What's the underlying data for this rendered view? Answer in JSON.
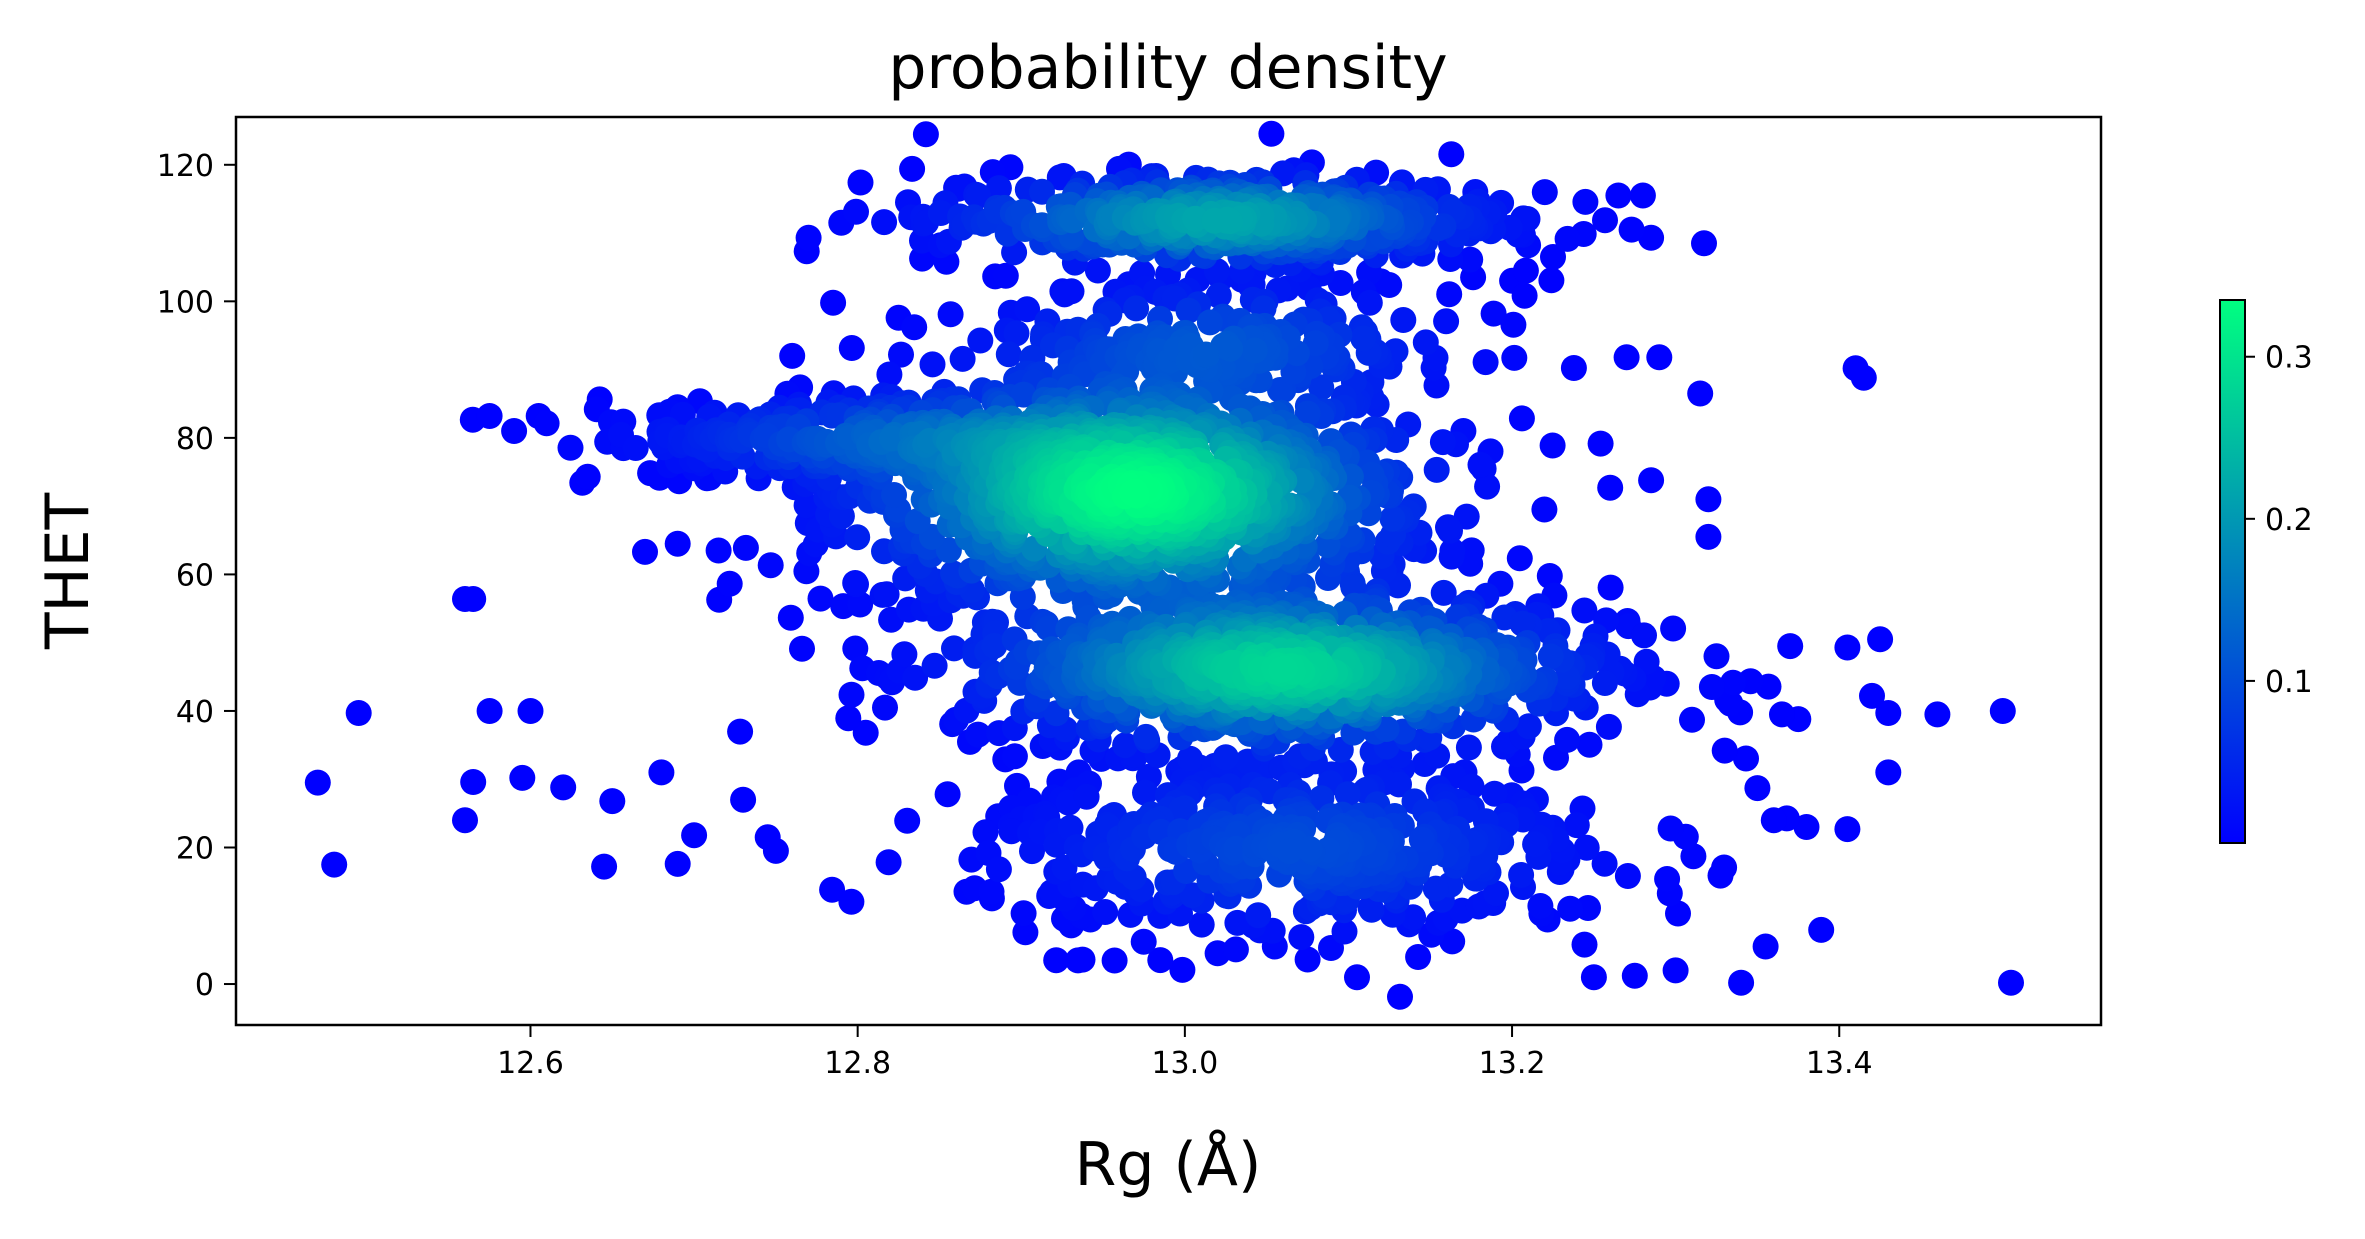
{
  "chart_data": {
    "type": "scatter",
    "title": "probability density",
    "xlabel": "Rg (Å)",
    "ylabel": "THET",
    "xlim": [
      12.42,
      13.56
    ],
    "ylim": [
      -6,
      127
    ],
    "x_ticks": [
      "12.6",
      "12.8",
      "13.0",
      "13.2",
      "13.4"
    ],
    "x_tick_values": [
      12.6,
      12.8,
      13.0,
      13.2,
      13.4
    ],
    "y_ticks": [
      "0",
      "20",
      "40",
      "60",
      "80",
      "100",
      "120"
    ],
    "y_tick_values": [
      0,
      20,
      40,
      60,
      80,
      100,
      120
    ],
    "grid": false,
    "colormap": "winter",
    "colormap_colors": [
      "#0000ff",
      "#00ff80"
    ],
    "colorbar": {
      "range": [
        0.0,
        0.335
      ],
      "ticks": [
        "0.1",
        "0.2",
        "0.3"
      ],
      "tick_values": [
        0.1,
        0.2,
        0.3
      ],
      "placement": "right"
    },
    "clusters": [
      {
        "x": 12.97,
        "y": 72,
        "sx": 0.09,
        "sy": 9,
        "n": 1100,
        "peak": 0.335
      },
      {
        "x": 13.06,
        "y": 46,
        "sx": 0.1,
        "sy": 6,
        "n": 800,
        "peak": 0.28
      },
      {
        "x": 13.02,
        "y": 112,
        "sx": 0.09,
        "sy": 3.5,
        "n": 450,
        "peak": 0.22
      },
      {
        "x": 12.8,
        "y": 80,
        "sx": 0.08,
        "sy": 3,
        "n": 250,
        "peak": 0.09
      },
      {
        "x": 13.07,
        "y": 20,
        "sx": 0.1,
        "sy": 7,
        "n": 450,
        "peak": 0.1
      },
      {
        "x": 13.02,
        "y": 94,
        "sx": 0.08,
        "sy": 5,
        "n": 200,
        "peak": 0.1
      }
    ],
    "outliers": [
      {
        "x": 12.47,
        "y": 29.5
      },
      {
        "x": 12.48,
        "y": 17.5
      },
      {
        "x": 12.495,
        "y": 39.7
      },
      {
        "x": 12.56,
        "y": 56.4
      },
      {
        "x": 12.565,
        "y": 56.4
      },
      {
        "x": 12.56,
        "y": 24
      },
      {
        "x": 12.565,
        "y": 29.6
      },
      {
        "x": 12.575,
        "y": 40
      },
      {
        "x": 12.595,
        "y": 30.2
      },
      {
        "x": 12.6,
        "y": 40
      },
      {
        "x": 12.62,
        "y": 28.8
      },
      {
        "x": 12.645,
        "y": 17.2
      },
      {
        "x": 12.65,
        "y": 26.8
      },
      {
        "x": 12.68,
        "y": 31
      },
      {
        "x": 12.69,
        "y": 17.6
      },
      {
        "x": 12.7,
        "y": 21.8
      },
      {
        "x": 12.73,
        "y": 27
      },
      {
        "x": 12.745,
        "y": 21.5
      },
      {
        "x": 12.75,
        "y": 19.5
      },
      {
        "x": 12.575,
        "y": 83.2
      },
      {
        "x": 12.59,
        "y": 81
      },
      {
        "x": 12.605,
        "y": 83.2
      },
      {
        "x": 12.635,
        "y": 74.3
      },
      {
        "x": 12.67,
        "y": 63.3
      },
      {
        "x": 12.69,
        "y": 64.5
      },
      {
        "x": 12.715,
        "y": 63.5
      },
      {
        "x": 12.76,
        "y": 92
      },
      {
        "x": 12.77,
        "y": 109.3
      },
      {
        "x": 12.79,
        "y": 111.5
      },
      {
        "x": 12.785,
        "y": 99.8
      },
      {
        "x": 12.855,
        "y": 27.8
      },
      {
        "x": 12.88,
        "y": 19.2
      },
      {
        "x": 12.9,
        "y": 24.2
      },
      {
        "x": 12.93,
        "y": 14.5
      },
      {
        "x": 12.97,
        "y": 13.3
      },
      {
        "x": 12.985,
        "y": 3.5
      },
      {
        "x": 13.02,
        "y": 4.5
      },
      {
        "x": 13.075,
        "y": 3.6
      },
      {
        "x": 13.055,
        "y": 5.5
      },
      {
        "x": 13.245,
        "y": 40.5
      },
      {
        "x": 13.25,
        "y": 1
      },
      {
        "x": 13.275,
        "y": 1.2
      },
      {
        "x": 13.3,
        "y": 2
      },
      {
        "x": 13.315,
        "y": 86.5
      },
      {
        "x": 13.32,
        "y": 71
      },
      {
        "x": 13.32,
        "y": 65.5
      },
      {
        "x": 13.325,
        "y": 48
      },
      {
        "x": 13.33,
        "y": 34.2
      },
      {
        "x": 13.34,
        "y": 0.2
      },
      {
        "x": 13.355,
        "y": 5.5
      },
      {
        "x": 13.36,
        "y": 24
      },
      {
        "x": 13.37,
        "y": 49.5
      },
      {
        "x": 13.38,
        "y": 23
      },
      {
        "x": 13.405,
        "y": 22.7
      },
      {
        "x": 13.405,
        "y": 49.3
      },
      {
        "x": 13.41,
        "y": 90.2
      },
      {
        "x": 13.415,
        "y": 88.8
      },
      {
        "x": 13.42,
        "y": 42.2
      },
      {
        "x": 13.425,
        "y": 50.5
      },
      {
        "x": 13.43,
        "y": 39.7
      },
      {
        "x": 13.43,
        "y": 31
      },
      {
        "x": 13.46,
        "y": 39.5
      },
      {
        "x": 13.5,
        "y": 40
      },
      {
        "x": 13.505,
        "y": 0.2
      },
      {
        "x": 13.265,
        "y": 115.5
      },
      {
        "x": 13.28,
        "y": 115.5
      },
      {
        "x": 13.285,
        "y": 109.3
      },
      {
        "x": 13.27,
        "y": 91.8
      },
      {
        "x": 13.29,
        "y": 91.8
      },
      {
        "x": 13.22,
        "y": 116
      },
      {
        "x": 13.225,
        "y": 106.5
      },
      {
        "x": 13.2,
        "y": 103
      },
      {
        "x": 13.26,
        "y": 72.7
      },
      {
        "x": 13.285,
        "y": 73.8
      },
      {
        "x": 13.31,
        "y": 38.7
      },
      {
        "x": 13.365,
        "y": 39.5
      },
      {
        "x": 13.375,
        "y": 38.8
      },
      {
        "x": 13.35,
        "y": 28.7
      }
    ]
  }
}
